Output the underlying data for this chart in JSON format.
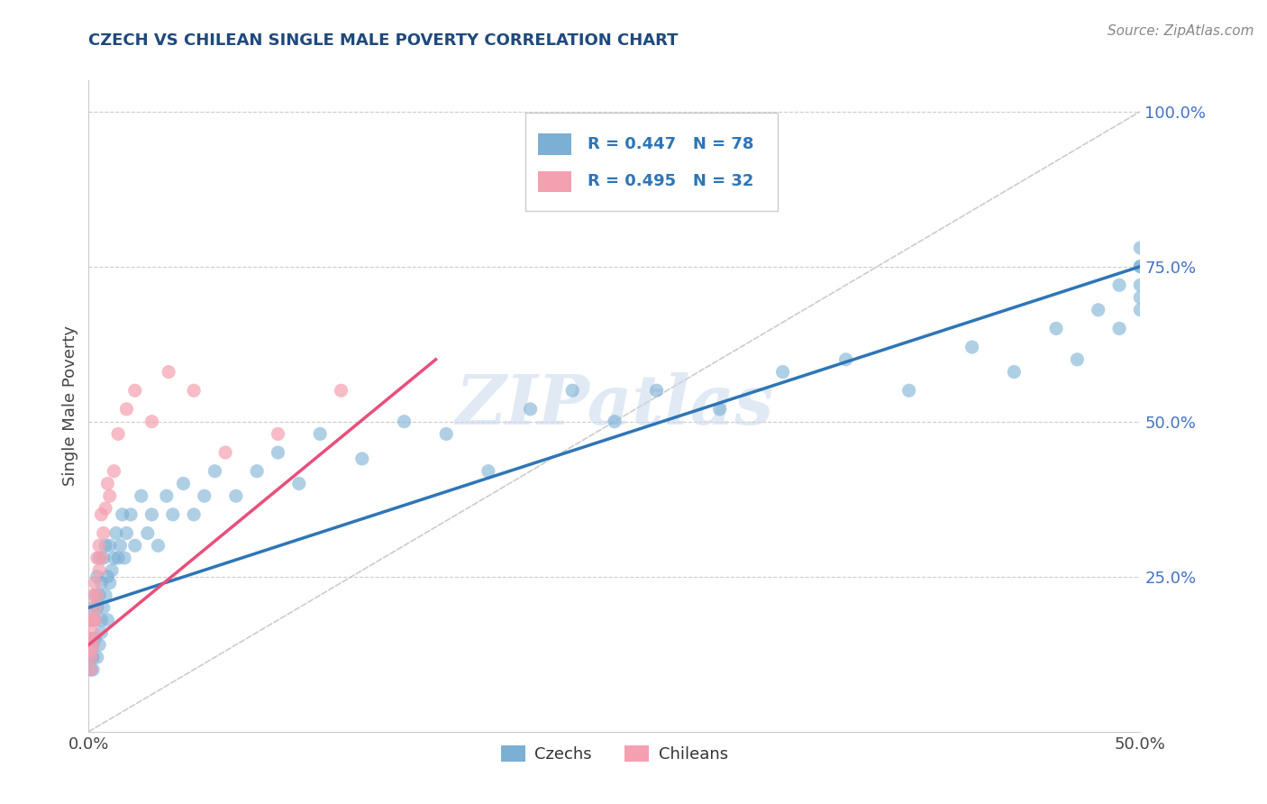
{
  "title": "CZECH VS CHILEAN SINGLE MALE POVERTY CORRELATION CHART",
  "source_text": "Source: ZipAtlas.com",
  "ylabel": "Single Male Poverty",
  "xlim": [
    0,
    0.5
  ],
  "ylim": [
    0,
    1.05
  ],
  "xticks": [
    0.0,
    0.1,
    0.2,
    0.3,
    0.4,
    0.5
  ],
  "xtick_labels": [
    "0.0%",
    "",
    "",
    "",
    "",
    "50.0%"
  ],
  "ytick_labels": [
    "",
    "25.0%",
    "50.0%",
    "75.0%",
    "100.0%"
  ],
  "yticks": [
    0.0,
    0.25,
    0.5,
    0.75,
    1.0
  ],
  "czech_color": "#7BAFD4",
  "chilean_color": "#F4A0B0",
  "czech_line_color": "#2E75B6",
  "chilean_line_color": "#E84F7A",
  "ref_line_color": "#CCCCCC",
  "legend_R_czech": "R = 0.447",
  "legend_N_czech": "N = 78",
  "legend_R_chilean": "R = 0.495",
  "legend_N_chilean": "N = 32",
  "watermark": "ZIPatlas",
  "czech_line_x0": 0.0,
  "czech_line_y0": 0.2,
  "czech_line_x1": 0.5,
  "czech_line_y1": 0.75,
  "chilean_line_x0": 0.0,
  "chilean_line_y0": 0.14,
  "chilean_line_x1": 0.165,
  "chilean_line_y1": 0.6,
  "czech_x": [
    0.001,
    0.001,
    0.001,
    0.001,
    0.002,
    0.002,
    0.002,
    0.002,
    0.003,
    0.003,
    0.003,
    0.004,
    0.004,
    0.004,
    0.005,
    0.005,
    0.005,
    0.006,
    0.006,
    0.006,
    0.007,
    0.007,
    0.008,
    0.008,
    0.009,
    0.009,
    0.01,
    0.01,
    0.011,
    0.012,
    0.013,
    0.014,
    0.015,
    0.016,
    0.017,
    0.018,
    0.02,
    0.022,
    0.025,
    0.028,
    0.03,
    0.033,
    0.037,
    0.04,
    0.045,
    0.05,
    0.055,
    0.06,
    0.07,
    0.08,
    0.09,
    0.1,
    0.11,
    0.13,
    0.15,
    0.17,
    0.19,
    0.21,
    0.23,
    0.25,
    0.27,
    0.3,
    0.33,
    0.36,
    0.39,
    0.42,
    0.44,
    0.46,
    0.47,
    0.48,
    0.49,
    0.49,
    0.5,
    0.5,
    0.5,
    0.5,
    0.5,
    0.5
  ],
  "czech_y": [
    0.12,
    0.15,
    0.18,
    0.1,
    0.12,
    0.14,
    0.2,
    0.1,
    0.15,
    0.18,
    0.22,
    0.12,
    0.2,
    0.25,
    0.14,
    0.22,
    0.28,
    0.16,
    0.24,
    0.18,
    0.2,
    0.28,
    0.22,
    0.3,
    0.18,
    0.25,
    0.24,
    0.3,
    0.26,
    0.28,
    0.32,
    0.28,
    0.3,
    0.35,
    0.28,
    0.32,
    0.35,
    0.3,
    0.38,
    0.32,
    0.35,
    0.3,
    0.38,
    0.35,
    0.4,
    0.35,
    0.38,
    0.42,
    0.38,
    0.42,
    0.45,
    0.4,
    0.48,
    0.44,
    0.5,
    0.48,
    0.42,
    0.52,
    0.55,
    0.5,
    0.55,
    0.52,
    0.58,
    0.6,
    0.55,
    0.62,
    0.58,
    0.65,
    0.6,
    0.68,
    0.65,
    0.72,
    0.68,
    0.72,
    0.75,
    0.78,
    0.7,
    0.75
  ],
  "chilean_x": [
    0.001,
    0.001,
    0.001,
    0.001,
    0.001,
    0.002,
    0.002,
    0.002,
    0.002,
    0.003,
    0.003,
    0.003,
    0.004,
    0.004,
    0.005,
    0.005,
    0.006,
    0.006,
    0.007,
    0.008,
    0.009,
    0.01,
    0.012,
    0.014,
    0.018,
    0.022,
    0.03,
    0.038,
    0.05,
    0.065,
    0.09,
    0.12
  ],
  "chilean_y": [
    0.1,
    0.13,
    0.15,
    0.18,
    0.12,
    0.14,
    0.18,
    0.22,
    0.16,
    0.2,
    0.24,
    0.18,
    0.22,
    0.28,
    0.26,
    0.3,
    0.28,
    0.35,
    0.32,
    0.36,
    0.4,
    0.38,
    0.42,
    0.48,
    0.52,
    0.55,
    0.5,
    0.58,
    0.55,
    0.45,
    0.48,
    0.55
  ]
}
